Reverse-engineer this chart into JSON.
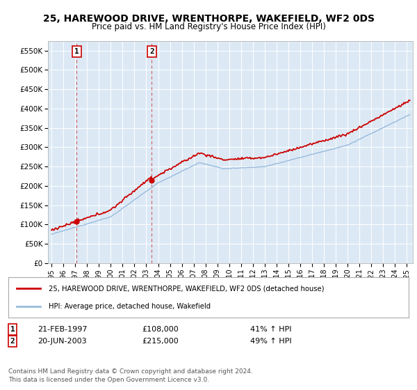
{
  "title": "25, HAREWOOD DRIVE, WRENTHORPE, WAKEFIELD, WF2 0DS",
  "subtitle": "Price paid vs. HM Land Registry's House Price Index (HPI)",
  "ylim": [
    0,
    575000
  ],
  "yticks": [
    0,
    50000,
    100000,
    150000,
    200000,
    250000,
    300000,
    350000,
    400000,
    450000,
    500000,
    550000
  ],
  "ytick_labels": [
    "£0",
    "£50K",
    "£100K",
    "£150K",
    "£200K",
    "£250K",
    "£300K",
    "£350K",
    "£400K",
    "£450K",
    "£500K",
    "£550K"
  ],
  "xlim_start": 1994.7,
  "xlim_end": 2025.5,
  "bg_color": "#dce9f5",
  "grid_color": "#ffffff",
  "fig_bg": "#ffffff",
  "sale1_date": 1997.13,
  "sale1_price": 108000,
  "sale2_date": 2003.47,
  "sale2_price": 215000,
  "line1_color": "#cc0000",
  "line2_color": "#99bbdd",
  "legend1": "25, HAREWOOD DRIVE, WRENTHORPE, WAKEFIELD, WF2 0DS (detached house)",
  "legend2": "HPI: Average price, detached house, Wakefield",
  "footer1": "Contains HM Land Registry data © Crown copyright and database right 2024.",
  "footer2": "This data is licensed under the Open Government Licence v3.0.",
  "sale1_date_str": "21-FEB-1997",
  "sale1_price_str": "£108,000",
  "sale1_hpi_str": "41% ↑ HPI",
  "sale2_date_str": "20-JUN-2003",
  "sale2_price_str": "£215,000",
  "sale2_hpi_str": "49% ↑ HPI"
}
